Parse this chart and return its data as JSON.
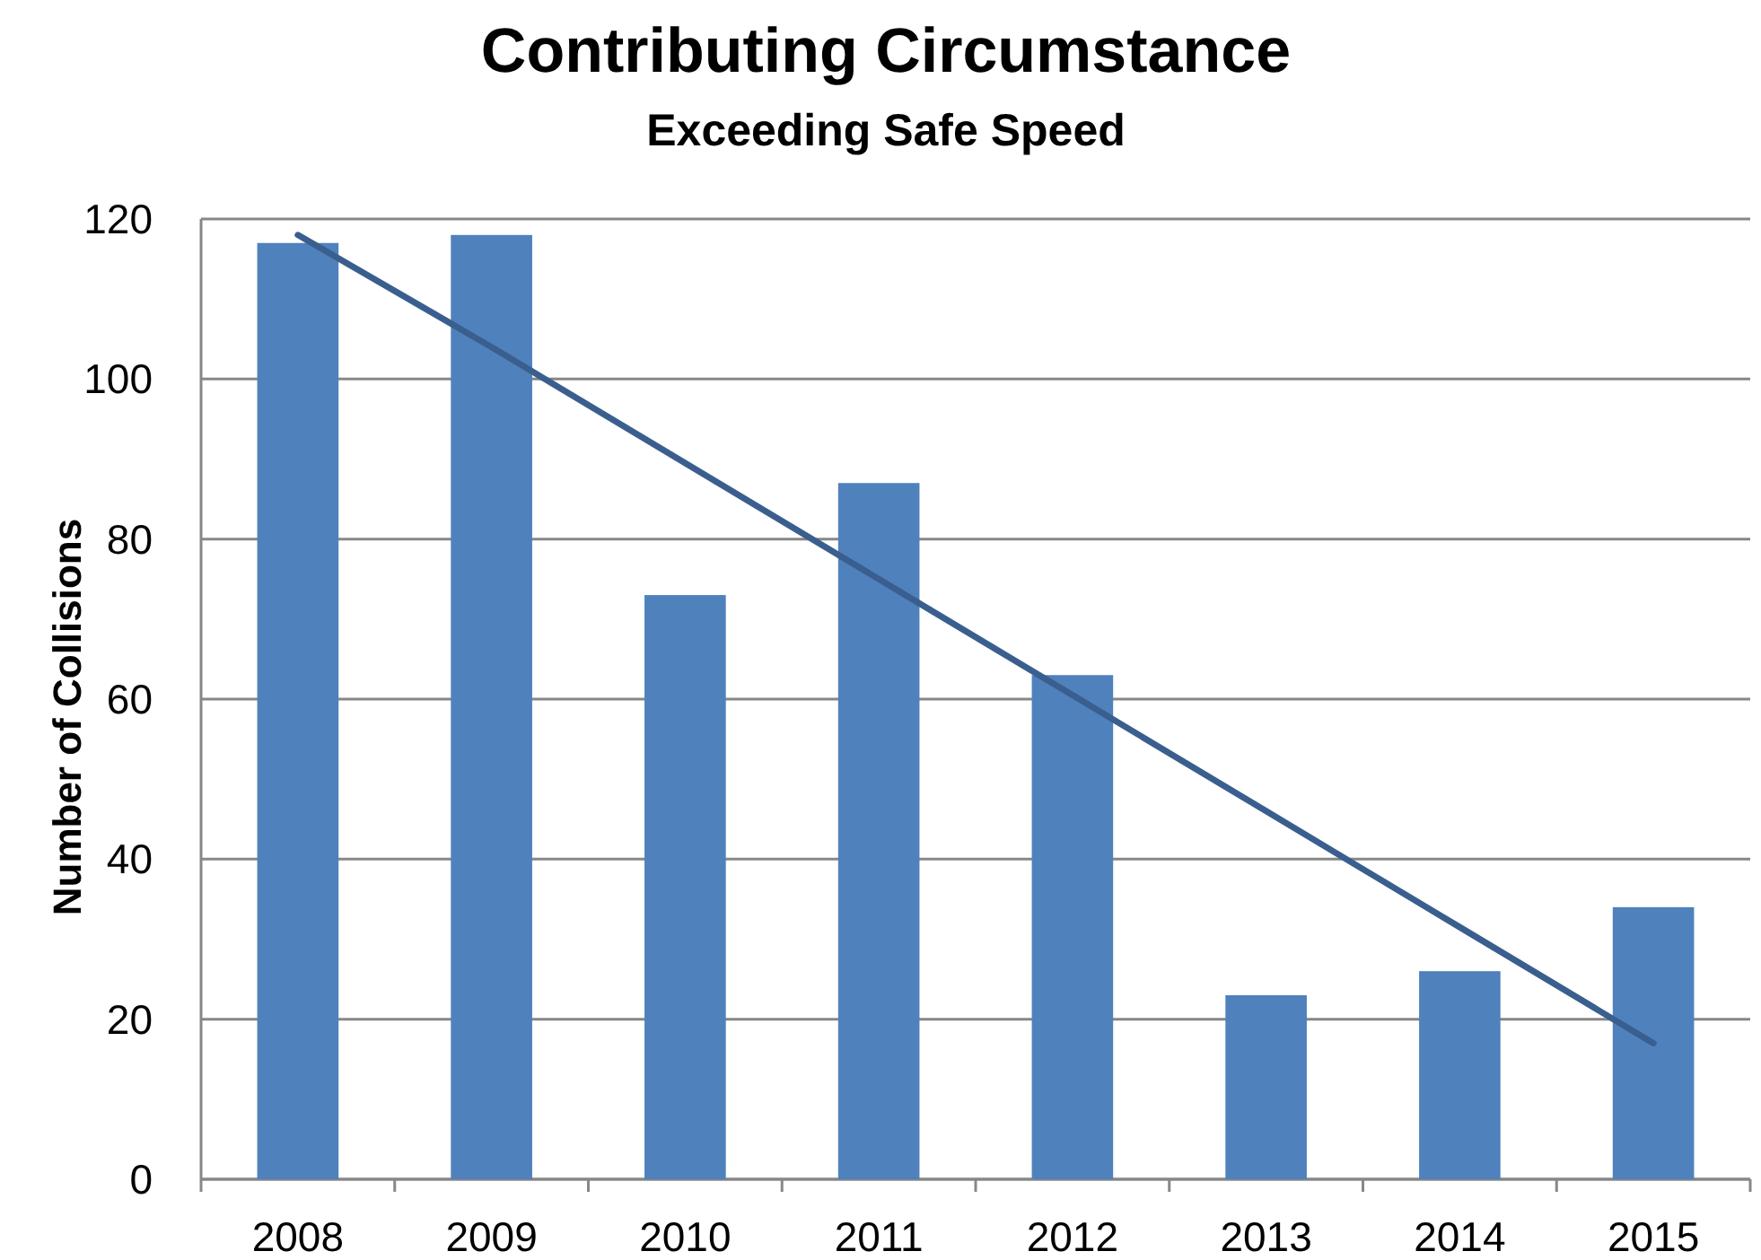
{
  "chart_data": {
    "type": "bar",
    "title": "Contributing Circumstance",
    "subtitle": "Exceeding Safe Speed",
    "ylabel": "Number of Collisions",
    "categories": [
      "2008",
      "2009",
      "2010",
      "2011",
      "2012",
      "2013",
      "2014",
      "2015"
    ],
    "series": [
      {
        "color": "#4f81bd",
        "values": [
          117,
          118,
          73,
          87,
          63,
          23,
          26,
          34
        ]
      },
      {
        "type": "line",
        "values": [
          118,
          104,
          89.5,
          75,
          60.5,
          46,
          31.5,
          17
        ],
        "color": "#3a5f8f"
      }
    ],
    "ylim": [
      0,
      120
    ],
    "yticks": [
      0,
      20,
      40,
      60,
      80,
      100,
      120
    ],
    "grid": "y"
  }
}
